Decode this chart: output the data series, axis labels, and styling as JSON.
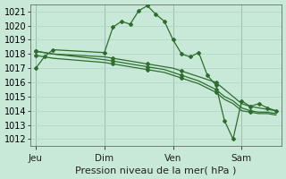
{
  "xlabel": "Pression niveau de la mer( hPa )",
  "background_color": "#c8e8d8",
  "grid_color": "#b0d8c8",
  "line_color": "#2d6e2d",
  "ylim": [
    1011.5,
    1021.5
  ],
  "yticks": [
    1012,
    1013,
    1014,
    1015,
    1016,
    1017,
    1018,
    1019,
    1020,
    1021
  ],
  "day_labels": [
    "Jeu",
    "Dim",
    "Ven",
    "Sam"
  ],
  "day_positions": [
    0,
    48,
    96,
    144
  ],
  "xlim": [
    -4,
    172
  ],
  "line1_x": [
    0,
    6,
    12,
    48,
    54,
    60,
    66,
    72,
    78,
    84,
    90,
    96,
    102,
    108,
    114,
    120,
    126,
    132,
    138,
    144,
    150,
    156,
    162,
    168
  ],
  "line1_y": [
    1017.0,
    1017.8,
    1018.3,
    1018.1,
    1019.9,
    1020.3,
    1020.1,
    1021.05,
    1021.4,
    1020.8,
    1020.3,
    1019.0,
    1018.0,
    1017.8,
    1018.1,
    1016.5,
    1015.8,
    1013.3,
    1012.0,
    1014.7,
    1014.3,
    1014.5,
    1014.2,
    1014.0
  ],
  "line2_x": [
    0,
    6,
    12,
    48,
    54,
    60,
    66,
    72,
    78,
    84,
    90,
    96,
    102,
    108,
    114,
    120,
    126,
    132,
    138,
    144,
    150,
    156,
    162,
    168
  ],
  "line2_y": [
    1018.2,
    1018.1,
    1018.0,
    1017.8,
    1017.7,
    1017.6,
    1017.5,
    1017.4,
    1017.3,
    1017.2,
    1017.1,
    1017.0,
    1016.8,
    1016.6,
    1016.4,
    1016.2,
    1016.0,
    1015.5,
    1015.0,
    1014.5,
    1014.3,
    1014.2,
    1014.1,
    1014.0
  ],
  "line3_x": [
    0,
    6,
    12,
    48,
    54,
    60,
    66,
    72,
    78,
    84,
    90,
    96,
    102,
    108,
    114,
    120,
    126,
    132,
    138,
    144,
    150,
    156,
    162,
    168
  ],
  "line3_y": [
    1018.2,
    1018.1,
    1018.0,
    1017.6,
    1017.5,
    1017.4,
    1017.3,
    1017.2,
    1017.1,
    1017.0,
    1016.9,
    1016.7,
    1016.5,
    1016.3,
    1016.1,
    1015.8,
    1015.5,
    1015.0,
    1014.7,
    1014.2,
    1014.0,
    1013.9,
    1013.9,
    1013.8
  ],
  "line4_x": [
    0,
    6,
    12,
    48,
    54,
    60,
    66,
    72,
    78,
    84,
    90,
    96,
    102,
    108,
    114,
    120,
    126,
    132,
    138,
    144,
    150,
    156,
    162,
    168
  ],
  "line4_y": [
    1017.9,
    1017.8,
    1017.7,
    1017.4,
    1017.3,
    1017.2,
    1017.1,
    1017.0,
    1016.9,
    1016.8,
    1016.7,
    1016.5,
    1016.3,
    1016.1,
    1015.9,
    1015.6,
    1015.3,
    1014.8,
    1014.5,
    1014.0,
    1013.9,
    1013.8,
    1013.8,
    1013.7
  ]
}
